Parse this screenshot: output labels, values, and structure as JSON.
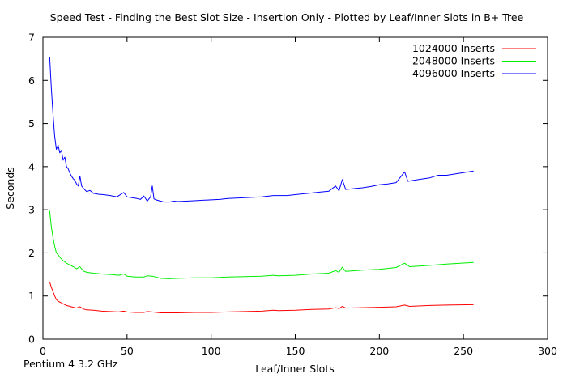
{
  "chart_data": {
    "type": "line",
    "title": "Speed Test - Finding the Best Slot Size - Insertion Only - Plotted by Leaf/Inner Slots in B+ Tree",
    "xlabel": "Leaf/Inner Slots",
    "ylabel": "Seconds",
    "footnote": "Pentium 4 3.2 GHz",
    "xlim": [
      0,
      300
    ],
    "ylim": [
      0,
      7
    ],
    "xticks": [
      0,
      50,
      100,
      150,
      200,
      250,
      300
    ],
    "yticks": [
      0,
      1,
      2,
      3,
      4,
      5,
      6,
      7
    ],
    "grid": false,
    "legend_position": "top-right",
    "series": [
      {
        "name": "1024000 Inserts",
        "color": "#ff0000",
        "points": [
          [
            4,
            1.33
          ],
          [
            5,
            1.2
          ],
          [
            6,
            1.1
          ],
          [
            7,
            1.0
          ],
          [
            8,
            0.92
          ],
          [
            9,
            0.88
          ],
          [
            10,
            0.86
          ],
          [
            12,
            0.82
          ],
          [
            14,
            0.78
          ],
          [
            16,
            0.76
          ],
          [
            18,
            0.74
          ],
          [
            20,
            0.72
          ],
          [
            22,
            0.75
          ],
          [
            24,
            0.7
          ],
          [
            26,
            0.68
          ],
          [
            30,
            0.67
          ],
          [
            35,
            0.65
          ],
          [
            40,
            0.64
          ],
          [
            45,
            0.63
          ],
          [
            48,
            0.65
          ],
          [
            50,
            0.63
          ],
          [
            55,
            0.62
          ],
          [
            60,
            0.62
          ],
          [
            62,
            0.64
          ],
          [
            65,
            0.63
          ],
          [
            70,
            0.61
          ],
          [
            80,
            0.61
          ],
          [
            90,
            0.62
          ],
          [
            100,
            0.62
          ],
          [
            110,
            0.63
          ],
          [
            120,
            0.64
          ],
          [
            130,
            0.65
          ],
          [
            137,
            0.67
          ],
          [
            140,
            0.66
          ],
          [
            150,
            0.67
          ],
          [
            160,
            0.69
          ],
          [
            170,
            0.7
          ],
          [
            174,
            0.73
          ],
          [
            176,
            0.71
          ],
          [
            178,
            0.76
          ],
          [
            180,
            0.72
          ],
          [
            190,
            0.73
          ],
          [
            200,
            0.74
          ],
          [
            210,
            0.75
          ],
          [
            215,
            0.79
          ],
          [
            218,
            0.76
          ],
          [
            230,
            0.78
          ],
          [
            240,
            0.79
          ],
          [
            256,
            0.8
          ]
        ]
      },
      {
        "name": "2048000 Inserts",
        "color": "#00ee00",
        "points": [
          [
            4,
            2.97
          ],
          [
            5,
            2.6
          ],
          [
            6,
            2.35
          ],
          [
            7,
            2.15
          ],
          [
            8,
            2.0
          ],
          [
            9,
            1.96
          ],
          [
            10,
            1.9
          ],
          [
            12,
            1.82
          ],
          [
            14,
            1.76
          ],
          [
            16,
            1.72
          ],
          [
            18,
            1.68
          ],
          [
            20,
            1.63
          ],
          [
            22,
            1.68
          ],
          [
            24,
            1.58
          ],
          [
            26,
            1.55
          ],
          [
            30,
            1.53
          ],
          [
            35,
            1.51
          ],
          [
            40,
            1.5
          ],
          [
            45,
            1.48
          ],
          [
            48,
            1.51
          ],
          [
            50,
            1.46
          ],
          [
            55,
            1.44
          ],
          [
            60,
            1.44
          ],
          [
            62,
            1.47
          ],
          [
            65,
            1.46
          ],
          [
            70,
            1.41
          ],
          [
            75,
            1.4
          ],
          [
            80,
            1.41
          ],
          [
            90,
            1.42
          ],
          [
            100,
            1.42
          ],
          [
            110,
            1.44
          ],
          [
            120,
            1.45
          ],
          [
            130,
            1.46
          ],
          [
            137,
            1.48
          ],
          [
            140,
            1.47
          ],
          [
            150,
            1.48
          ],
          [
            160,
            1.51
          ],
          [
            170,
            1.53
          ],
          [
            174,
            1.59
          ],
          [
            176,
            1.55
          ],
          [
            178,
            1.67
          ],
          [
            180,
            1.57
          ],
          [
            190,
            1.6
          ],
          [
            200,
            1.62
          ],
          [
            210,
            1.66
          ],
          [
            215,
            1.76
          ],
          [
            218,
            1.68
          ],
          [
            230,
            1.71
          ],
          [
            240,
            1.74
          ],
          [
            256,
            1.78
          ]
        ]
      },
      {
        "name": "4096000 Inserts",
        "color": "#0000ff",
        "points": [
          [
            4,
            6.55
          ],
          [
            5,
            5.8
          ],
          [
            6,
            5.2
          ],
          [
            7,
            4.7
          ],
          [
            8,
            4.4
          ],
          [
            9,
            4.5
          ],
          [
            10,
            4.32
          ],
          [
            11,
            4.38
          ],
          [
            12,
            4.15
          ],
          [
            13,
            4.22
          ],
          [
            14,
            4.0
          ],
          [
            15,
            3.95
          ],
          [
            16,
            3.85
          ],
          [
            17,
            3.78
          ],
          [
            18,
            3.72
          ],
          [
            19,
            3.68
          ],
          [
            20,
            3.6
          ],
          [
            21,
            3.55
          ],
          [
            22,
            3.78
          ],
          [
            23,
            3.55
          ],
          [
            24,
            3.5
          ],
          [
            26,
            3.42
          ],
          [
            28,
            3.45
          ],
          [
            30,
            3.38
          ],
          [
            33,
            3.36
          ],
          [
            36,
            3.35
          ],
          [
            40,
            3.33
          ],
          [
            44,
            3.3
          ],
          [
            48,
            3.4
          ],
          [
            50,
            3.3
          ],
          [
            53,
            3.28
          ],
          [
            56,
            3.26
          ],
          [
            58,
            3.24
          ],
          [
            60,
            3.32
          ],
          [
            62,
            3.2
          ],
          [
            64,
            3.3
          ],
          [
            65,
            3.55
          ],
          [
            66,
            3.25
          ],
          [
            68,
            3.22
          ],
          [
            70,
            3.2
          ],
          [
            72,
            3.18
          ],
          [
            75,
            3.18
          ],
          [
            78,
            3.2
          ],
          [
            80,
            3.19
          ],
          [
            85,
            3.2
          ],
          [
            90,
            3.21
          ],
          [
            95,
            3.22
          ],
          [
            100,
            3.23
          ],
          [
            105,
            3.24
          ],
          [
            110,
            3.26
          ],
          [
            115,
            3.27
          ],
          [
            120,
            3.28
          ],
          [
            125,
            3.29
          ],
          [
            130,
            3.3
          ],
          [
            137,
            3.33
          ],
          [
            140,
            3.33
          ],
          [
            145,
            3.33
          ],
          [
            150,
            3.35
          ],
          [
            155,
            3.37
          ],
          [
            160,
            3.39
          ],
          [
            165,
            3.41
          ],
          [
            170,
            3.43
          ],
          [
            174,
            3.55
          ],
          [
            176,
            3.44
          ],
          [
            178,
            3.7
          ],
          [
            180,
            3.47
          ],
          [
            185,
            3.49
          ],
          [
            190,
            3.51
          ],
          [
            195,
            3.54
          ],
          [
            200,
            3.58
          ],
          [
            205,
            3.6
          ],
          [
            210,
            3.63
          ],
          [
            215,
            3.88
          ],
          [
            217,
            3.66
          ],
          [
            220,
            3.68
          ],
          [
            225,
            3.71
          ],
          [
            230,
            3.74
          ],
          [
            235,
            3.8
          ],
          [
            240,
            3.8
          ],
          [
            245,
            3.83
          ],
          [
            250,
            3.86
          ],
          [
            256,
            3.9
          ]
        ]
      }
    ]
  }
}
